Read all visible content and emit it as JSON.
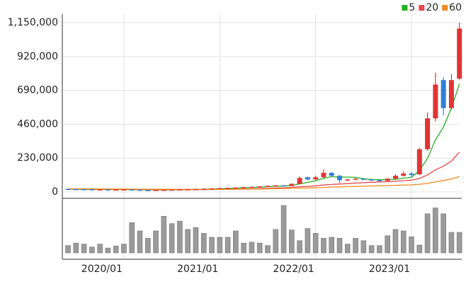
{
  "chart_data": {
    "type": "candlestick",
    "categories": [
      null,
      null,
      null,
      null,
      null,
      null,
      null,
      "2020/01",
      null,
      null,
      null,
      null,
      null,
      null,
      null,
      null,
      null,
      null,
      null,
      "2021/01",
      null,
      null,
      null,
      null,
      null,
      null,
      null,
      null,
      null,
      null,
      null,
      "2022/01",
      null,
      null,
      null,
      null,
      null,
      null,
      null,
      null,
      null,
      null,
      null,
      "2023/01",
      null,
      null,
      null,
      null,
      null,
      null
    ],
    "open": [
      21000,
      20000,
      19000,
      18000,
      17000,
      17000,
      16000,
      16000,
      17000,
      15000,
      13000,
      12000,
      14000,
      15000,
      16000,
      17000,
      18000,
      20000,
      22000,
      24000,
      26000,
      28000,
      30000,
      33000,
      35000,
      38000,
      42000,
      45000,
      40000,
      55000,
      100000,
      85000,
      100000,
      130000,
      110000,
      80000,
      85000,
      90000,
      85000,
      80000,
      75000,
      90000,
      110000,
      125000,
      120000,
      290000,
      500000,
      760000,
      570000,
      770000
    ],
    "high": [
      22000,
      21000,
      20000,
      19000,
      18000,
      18000,
      17000,
      18000,
      18000,
      16000,
      14000,
      15000,
      16000,
      17000,
      18000,
      19000,
      21000,
      23000,
      25000,
      28000,
      30000,
      32000,
      35000,
      37000,
      40000,
      44000,
      48000,
      47000,
      58000,
      105000,
      105000,
      110000,
      155000,
      135000,
      115000,
      90000,
      95000,
      95000,
      90000,
      85000,
      95000,
      120000,
      140000,
      135000,
      300000,
      540000,
      810000,
      780000,
      800000,
      1150000
    ],
    "low": [
      19000,
      18000,
      17000,
      16000,
      16000,
      15000,
      15000,
      15000,
      13000,
      11000,
      11000,
      12000,
      14000,
      15000,
      16000,
      17000,
      18000,
      20000,
      22000,
      24000,
      25000,
      28000,
      30000,
      32000,
      34000,
      37000,
      41000,
      38000,
      39000,
      53000,
      80000,
      82000,
      95000,
      100000,
      60000,
      75000,
      80000,
      80000,
      75000,
      70000,
      72000,
      85000,
      105000,
      105000,
      115000,
      280000,
      480000,
      520000,
      560000,
      760000
    ],
    "close": [
      20000,
      19000,
      18000,
      17000,
      17000,
      16000,
      16000,
      17000,
      15000,
      13000,
      12000,
      14000,
      15000,
      16000,
      17000,
      18000,
      20000,
      22000,
      24000,
      26000,
      28000,
      30000,
      33000,
      35000,
      38000,
      42000,
      45000,
      40000,
      55000,
      95000,
      85000,
      100000,
      130000,
      110000,
      80000,
      85000,
      90000,
      85000,
      80000,
      75000,
      90000,
      110000,
      125000,
      115000,
      290000,
      500000,
      730000,
      570000,
      760000,
      1110000
    ],
    "up_color": "#e03434",
    "down_color": "#2f7fd8",
    "series": [
      {
        "name": "5",
        "color": "#22b022",
        "values": [
          19000,
          19000,
          18500,
          18000,
          17500,
          17000,
          16500,
          16500,
          16000,
          15500,
          14500,
          14000,
          14000,
          14500,
          15000,
          16000,
          17000,
          18500,
          20000,
          22000,
          24000,
          26000,
          28000,
          31000,
          33000,
          36000,
          39000,
          40000,
          44000,
          55000,
          65000,
          76000,
          93000,
          104000,
          101000,
          101000,
          99000,
          90000,
          84000,
          83000,
          84000,
          86000,
          94000,
          99000,
          146000,
          228000,
          354000,
          441000,
          570000,
          734000
        ]
      },
      {
        "name": "20",
        "color": "#e8464e",
        "values": [
          20000,
          20000,
          19500,
          19000,
          19000,
          18500,
          18000,
          18000,
          17500,
          17000,
          16500,
          16500,
          16500,
          16000,
          16000,
          16000,
          16000,
          16500,
          17000,
          17500,
          18000,
          19000,
          20000,
          21500,
          23000,
          25000,
          27000,
          28000,
          31000,
          35000,
          38000,
          42000,
          47000,
          51000,
          54000,
          57000,
          60000,
          63000,
          66000,
          68000,
          70000,
          73000,
          77000,
          80000,
          92000,
          115000,
          150000,
          175000,
          210000,
          270000
        ]
      },
      {
        "name": "60",
        "color": "#f08a24",
        "values": [
          21000,
          21000,
          20800,
          20500,
          20300,
          20000,
          19800,
          19500,
          19300,
          19000,
          18800,
          18500,
          18300,
          18000,
          18000,
          17800,
          17800,
          17800,
          18000,
          18000,
          18300,
          18500,
          19000,
          19500,
          20000,
          21000,
          22000,
          23000,
          24500,
          26000,
          27500,
          29000,
          31000,
          33000,
          34500,
          36000,
          37500,
          39000,
          40500,
          42000,
          43500,
          45000,
          46500,
          48000,
          52000,
          58000,
          68000,
          78000,
          88000,
          105000
        ]
      }
    ],
    "ylim": [
      0,
      1150000
    ],
    "yticks": [
      0,
      {
        "value": 230000,
        "label": "230,000"
      },
      {
        "value": 460000,
        "label": "460,000"
      },
      {
        "value": 690000,
        "label": "690,000"
      },
      {
        "value": 920000,
        "label": "920,000"
      },
      {
        "value": 1150000,
        "label": "1,150,000"
      }
    ],
    "grid": true,
    "legend": "top-right",
    "volume": {
      "color": "#9a9a9a",
      "ylim": [
        0,
        100
      ],
      "values": [
        15,
        20,
        18,
        12,
        18,
        10,
        14,
        18,
        62,
        45,
        30,
        45,
        75,
        60,
        65,
        48,
        52,
        40,
        32,
        32,
        32,
        45,
        20,
        22,
        20,
        15,
        48,
        97,
        47,
        25,
        50,
        40,
        30,
        32,
        30,
        18,
        30,
        25,
        15,
        15,
        35,
        48,
        45,
        33,
        16,
        80,
        92,
        80,
        42,
        42
      ]
    }
  }
}
